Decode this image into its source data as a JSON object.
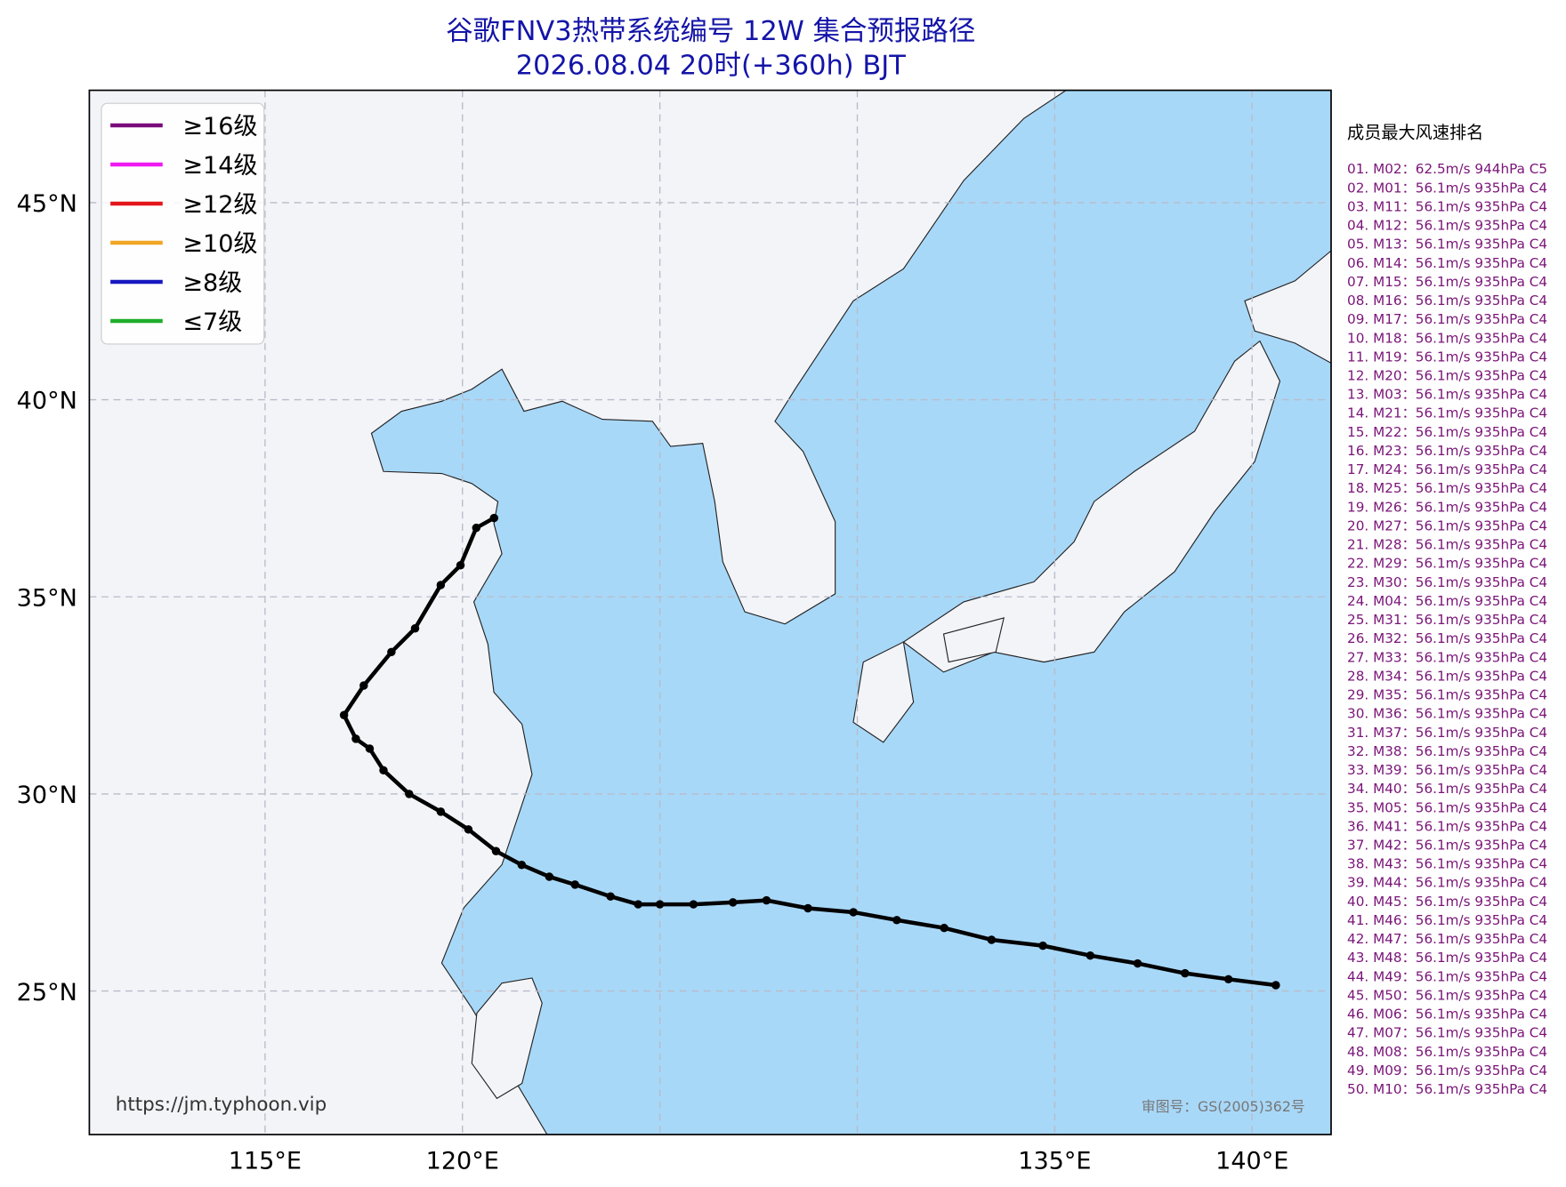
{
  "map": {
    "title": "谷歌FNV3热带系统编号 12W 集合预报路径",
    "subtitle": "2026.08.04 20时(+360h) BJT",
    "xlim": [
      110.55,
      142.0
    ],
    "ylim": [
      21.36,
      47.85
    ],
    "xticks": [
      {
        "value": 115,
        "label": "115°E"
      },
      {
        "value": 120,
        "label": "120°E"
      },
      {
        "value": 125,
        "label": ""
      },
      {
        "value": 130,
        "label": ""
      },
      {
        "value": 135,
        "label": "135°E"
      },
      {
        "value": 140,
        "label": "140°E"
      }
    ],
    "yticks": [
      {
        "value": 25,
        "label": "25°N"
      },
      {
        "value": 30,
        "label": "30°N"
      },
      {
        "value": 35,
        "label": "35°N"
      },
      {
        "value": 40,
        "label": "40°N"
      },
      {
        "value": 45,
        "label": "45°N"
      }
    ],
    "legend": [
      {
        "name": "≥16级",
        "color": "#7a0a7a"
      },
      {
        "name": "≥14级",
        "color": "#f01af0"
      },
      {
        "name": "≥12级",
        "color": "#e3161b"
      },
      {
        "name": "≥10级",
        "color": "#f2a626"
      },
      {
        "name": "≥8级",
        "color": "#1818c0"
      },
      {
        "name": "≤7级",
        "color": "#1fae2a"
      }
    ],
    "mean_track": {
      "color": "#000000",
      "lon": [
        140.6,
        139.4,
        138.3,
        137.1,
        135.9,
        134.7,
        133.4,
        132.2,
        131.0,
        129.9,
        128.75,
        127.7,
        126.85,
        125.85,
        125.0,
        124.45,
        123.75,
        122.85,
        122.2,
        121.5,
        120.85,
        120.15,
        119.45,
        118.65,
        118.0,
        117.65,
        117.3,
        117.0,
        117.5,
        118.2,
        118.8,
        119.45,
        119.95,
        120.35,
        120.8
      ],
      "lat": [
        25.15,
        25.3,
        25.45,
        25.7,
        25.9,
        26.15,
        26.3,
        26.6,
        26.8,
        27.0,
        27.1,
        27.3,
        27.25,
        27.2,
        27.2,
        27.2,
        27.4,
        27.7,
        27.9,
        28.2,
        28.55,
        29.1,
        29.55,
        30.0,
        30.6,
        31.15,
        31.4,
        32.0,
        32.75,
        33.6,
        34.2,
        35.3,
        35.8,
        36.75,
        37.0
      ]
    },
    "source": "https://jm.typhoon.vip",
    "approval": "审图号：GS(2005)362号"
  },
  "ranking": {
    "title": "成员最大风速排名",
    "items": [
      "01. M02：62.5m/s 944hPa C5",
      "02. M01：56.1m/s 935hPa C4",
      "03. M11：56.1m/s 935hPa C4",
      "04. M12：56.1m/s 935hPa C4",
      "05. M13：56.1m/s 935hPa C4",
      "06. M14：56.1m/s 935hPa C4",
      "07. M15：56.1m/s 935hPa C4",
      "08. M16：56.1m/s 935hPa C4",
      "09. M17：56.1m/s 935hPa C4",
      "10. M18：56.1m/s 935hPa C4",
      "11. M19：56.1m/s 935hPa C4",
      "12. M20：56.1m/s 935hPa C4",
      "13. M03：56.1m/s 935hPa C4",
      "14. M21：56.1m/s 935hPa C4",
      "15. M22：56.1m/s 935hPa C4",
      "16. M23：56.1m/s 935hPa C4",
      "17. M24：56.1m/s 935hPa C4",
      "18. M25：56.1m/s 935hPa C4",
      "19. M26：56.1m/s 935hPa C4",
      "20. M27：56.1m/s 935hPa C4",
      "21. M28：56.1m/s 935hPa C4",
      "22. M29：56.1m/s 935hPa C4",
      "23. M30：56.1m/s 935hPa C4",
      "24. M04：56.1m/s 935hPa C4",
      "25. M31：56.1m/s 935hPa C4",
      "26. M32：56.1m/s 935hPa C4",
      "27. M33：56.1m/s 935hPa C4",
      "28. M34：56.1m/s 935hPa C4",
      "29. M35：56.1m/s 935hPa C4",
      "30. M36：56.1m/s 935hPa C4",
      "31. M37：56.1m/s 935hPa C4",
      "32. M38：56.1m/s 935hPa C4",
      "33. M39：56.1m/s 935hPa C4",
      "34. M40：56.1m/s 935hPa C4",
      "35. M05：56.1m/s 935hPa C4",
      "36. M41：56.1m/s 935hPa C4",
      "37. M42：56.1m/s 935hPa C4",
      "38. M43：56.1m/s 935hPa C4",
      "39. M44：56.1m/s 935hPa C4",
      "40. M45：56.1m/s 935hPa C4",
      "41. M46：56.1m/s 935hPa C4",
      "42. M47：56.1m/s 935hPa C4",
      "43. M48：56.1m/s 935hPa C4",
      "44. M49：56.1m/s 935hPa C4",
      "45. M50：56.1m/s 935hPa C4",
      "46. M06：56.1m/s 935hPa C4",
      "47. M07：56.1m/s 935hPa C4",
      "48. M08：56.1m/s 935hPa C4",
      "49. M09：56.1m/s 935hPa C4",
      "50. M10：56.1m/s 935hPa C4"
    ]
  }
}
